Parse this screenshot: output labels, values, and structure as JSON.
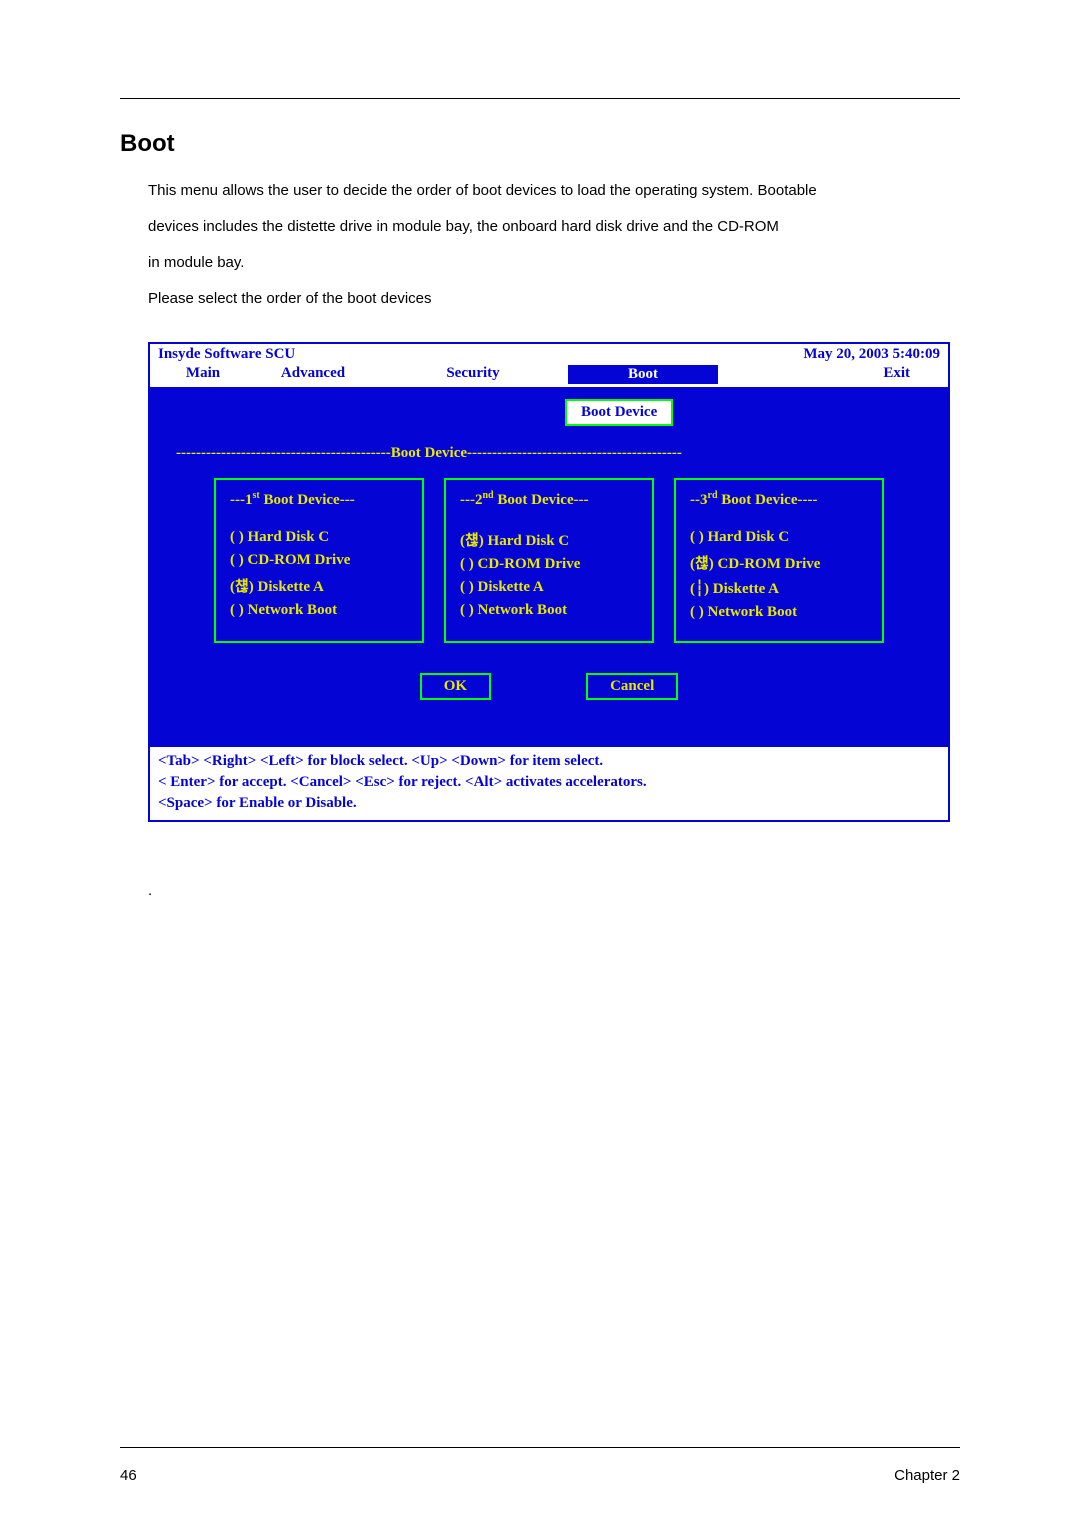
{
  "section_title": "Boot",
  "intro_line1": "This menu allows the user to decide the order of boot devices to load the operating system. Bootable",
  "intro_line2": "devices includes the distette drive in module bay, the onboard hard disk drive and the CD-ROM",
  "intro_line3": "in module bay.",
  "intro_line4": "Please select the order of the boot devices",
  "bios": {
    "brand": "Insyde Software SCU",
    "datetime": "May 20, 2003 5:40:09",
    "menu": {
      "main": "Main",
      "advanced": "Advanced",
      "security": "Security",
      "boot": "Boot",
      "exit": "Exit"
    },
    "pill": "Boot Device",
    "frame_label": "Boot Device",
    "col1": {
      "title_pre": "---1",
      "title_sup": "st",
      "title_post": " Boot Device---",
      "o1": "(     ) Hard Disk C",
      "o2": "(     ) CD-ROM Drive",
      "o3": "(첂) Diskette A",
      "o4": "(     ) Network Boot"
    },
    "col2": {
      "title_pre": "---2",
      "title_sup": "nd",
      "title_post": " Boot Device---",
      "o1": "(첂) Hard Disk C",
      "o2": "(     ) CD-ROM Drive",
      "o3": "(     ) Diskette A",
      "o4": "(     ) Network Boot"
    },
    "col3": {
      "title_pre": "--3",
      "title_sup": "rd",
      "title_post": " Boot Device----",
      "o1": "(     ) Hard Disk C",
      "o2": "(첂) CD-ROM Drive",
      "o3": "(┆) Diskette A",
      "o4": "(     ) Network Boot"
    },
    "ok": "OK",
    "cancel": "Cancel",
    "footer1": "<Tab> <Right> <Left> for block select.    <Up> <Down> for item select.",
    "footer2": "< Enter> for accept. <Cancel> <Esc> for reject. <Alt> activates accelerators.",
    "footer3": "<Space> for Enable or Disable."
  },
  "dot": ".",
  "page_num": "46",
  "chapter": "Chapter 2"
}
